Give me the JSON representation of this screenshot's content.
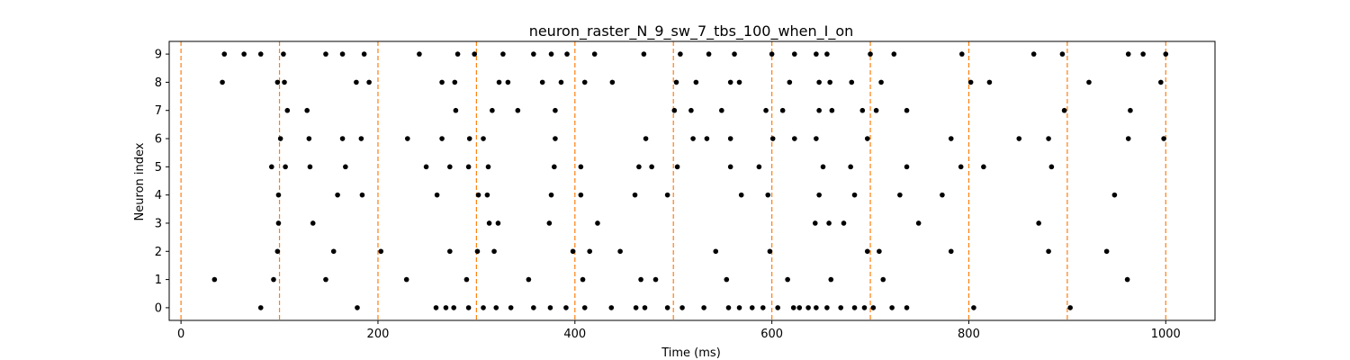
{
  "chart_data": {
    "type": "scatter",
    "title": "neuron_raster_N_9_sw_7_tbs_100_when_I_on",
    "xlabel": "Time (ms)",
    "ylabel": "Neuron index",
    "xlim": [
      -12,
      1050
    ],
    "ylim": [
      -0.45,
      9.45
    ],
    "xticks": [
      0,
      200,
      400,
      600,
      800,
      1000
    ],
    "yticks": [
      0,
      1,
      2,
      3,
      4,
      5,
      6,
      7,
      8,
      9
    ],
    "grid": false,
    "marker_color": "#000000",
    "vline_color": "#ff7f0e",
    "vlines": [
      0,
      100,
      200,
      300,
      400,
      500,
      600,
      700,
      800,
      900,
      1000
    ],
    "spikes": [
      {
        "neuron": 0,
        "times": [
          81,
          179,
          259,
          269,
          277,
          292,
          307,
          320,
          335,
          358,
          375,
          391,
          410,
          437,
          462,
          471,
          494,
          509,
          531,
          556,
          567,
          580,
          591,
          606,
          622,
          628,
          637,
          645,
          656,
          670,
          684,
          694,
          703,
          722,
          737,
          805,
          903
        ]
      },
      {
        "neuron": 1,
        "times": [
          34,
          94,
          147,
          229,
          290,
          353,
          408,
          467,
          482,
          554,
          616,
          660,
          713,
          961
        ]
      },
      {
        "neuron": 2,
        "times": [
          98,
          155,
          203,
          273,
          301,
          318,
          398,
          415,
          446,
          543,
          598,
          697,
          709,
          782,
          881,
          940
        ]
      },
      {
        "neuron": 3,
        "times": [
          99,
          134,
          313,
          322,
          374,
          423,
          644,
          658,
          673,
          749,
          871
        ]
      },
      {
        "neuron": 4,
        "times": [
          99,
          159,
          184,
          260,
          302,
          311,
          376,
          406,
          461,
          494,
          569,
          596,
          648,
          684,
          730,
          773,
          948
        ]
      },
      {
        "neuron": 5,
        "times": [
          92,
          106,
          131,
          167,
          249,
          273,
          292,
          312,
          379,
          406,
          465,
          478,
          504,
          558,
          587,
          652,
          680,
          737,
          792,
          815,
          884
        ]
      },
      {
        "neuron": 6,
        "times": [
          101,
          130,
          164,
          183,
          230,
          265,
          293,
          307,
          380,
          472,
          520,
          534,
          558,
          601,
          623,
          645,
          697,
          782,
          851,
          881,
          962,
          998
        ]
      },
      {
        "neuron": 7,
        "times": [
          108,
          128,
          279,
          316,
          342,
          380,
          501,
          518,
          549,
          594,
          611,
          648,
          661,
          692,
          706,
          737,
          897,
          964
        ]
      },
      {
        "neuron": 8,
        "times": [
          42,
          98,
          105,
          178,
          191,
          265,
          278,
          323,
          332,
          367,
          386,
          410,
          438,
          503,
          523,
          558,
          567,
          618,
          648,
          659,
          681,
          711,
          802,
          821,
          922,
          995
        ]
      },
      {
        "neuron": 9,
        "times": [
          44,
          64,
          81,
          104,
          147,
          164,
          186,
          242,
          281,
          298,
          327,
          358,
          376,
          392,
          420,
          470,
          507,
          536,
          562,
          600,
          623,
          645,
          656,
          700,
          724,
          793,
          866,
          895,
          962,
          977,
          1000
        ]
      }
    ]
  }
}
